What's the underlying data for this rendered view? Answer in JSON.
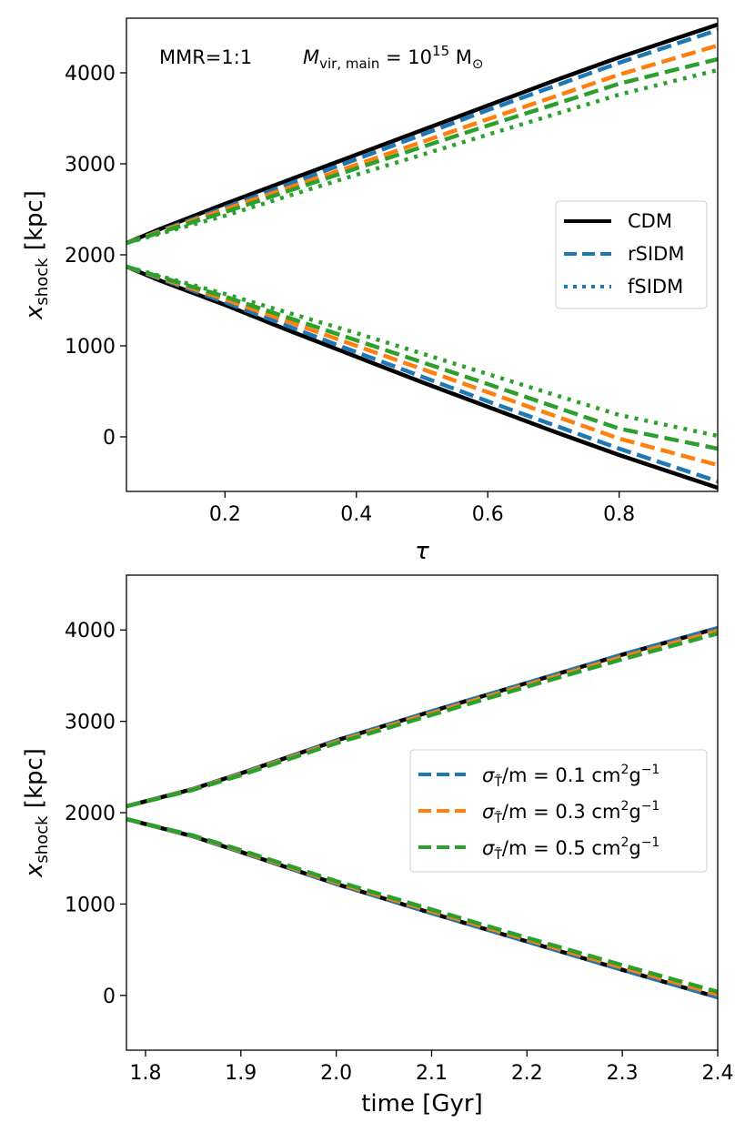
{
  "chart_data": [
    {
      "type": "line",
      "annotation": {
        "mmr": "MMR=1:1",
        "mass_symbol": "M",
        "mass_sub": "vir, main",
        "mass_eq": " = 10",
        "mass_exp": "15",
        "mass_unit": " M",
        "mass_unit_sub": "⊙"
      },
      "xlabel": "τ",
      "ylabel_main": "x",
      "ylabel_sub": "shock",
      "ylabel_unit": " [kpc]",
      "xlim": [
        0.05,
        0.95
      ],
      "ylim": [
        -600,
        4600
      ],
      "xticks": [
        0.2,
        0.4,
        0.6,
        0.8
      ],
      "xtick_labels": [
        "0.2",
        "0.4",
        "0.6",
        "0.8"
      ],
      "yticks": [
        0,
        1000,
        2000,
        3000,
        4000
      ],
      "ytick_labels": [
        "0",
        "1000",
        "2000",
        "3000",
        "4000"
      ],
      "legend": {
        "position": "right",
        "entries": [
          {
            "label": "CDM",
            "color": "#000000",
            "style": "solid"
          },
          {
            "label": "rSIDM",
            "color": "#1f77b4",
            "style": "dashed"
          },
          {
            "label": "fSIDM",
            "color": "#1f77b4",
            "style": "dotted"
          }
        ]
      },
      "series": [
        {
          "name": "CDM upper",
          "color": "#000000",
          "style": "solid",
          "x": [
            0.05,
            0.1,
            0.2,
            0.3,
            0.4,
            0.5,
            0.6,
            0.7,
            0.8,
            0.95
          ],
          "y": [
            2130,
            2280,
            2560,
            2830,
            3100,
            3370,
            3640,
            3910,
            4170,
            4530
          ]
        },
        {
          "name": "CDM lower",
          "color": "#000000",
          "style": "solid",
          "x": [
            0.05,
            0.1,
            0.2,
            0.3,
            0.4,
            0.5,
            0.6,
            0.7,
            0.8,
            0.95
          ],
          "y": [
            1870,
            1720,
            1450,
            1160,
            880,
            600,
            330,
            60,
            -200,
            -560
          ]
        },
        {
          "name": "rSIDM 0.1 upper",
          "color": "#1f77b4",
          "style": "dashed",
          "x": [
            0.05,
            0.2,
            0.4,
            0.6,
            0.8,
            0.95
          ],
          "y": [
            2130,
            2520,
            3050,
            3590,
            4110,
            4470
          ]
        },
        {
          "name": "rSIDM 0.1 lower",
          "color": "#1f77b4",
          "style": "dashed",
          "x": [
            0.05,
            0.2,
            0.4,
            0.6,
            0.8,
            0.95
          ],
          "y": [
            1870,
            1480,
            930,
            390,
            -130,
            -490
          ]
        },
        {
          "name": "rSIDM 0.3 upper",
          "color": "#ff7f0e",
          "style": "dashed",
          "x": [
            0.05,
            0.2,
            0.4,
            0.6,
            0.8,
            0.95
          ],
          "y": [
            2130,
            2500,
            2990,
            3490,
            3980,
            4300
          ]
        },
        {
          "name": "rSIDM 0.3 lower",
          "color": "#ff7f0e",
          "style": "dashed",
          "x": [
            0.05,
            0.2,
            0.4,
            0.6,
            0.8,
            0.95
          ],
          "y": [
            1870,
            1510,
            1000,
            490,
            -20,
            -310
          ]
        },
        {
          "name": "rSIDM 0.5 upper",
          "color": "#2ca02c",
          "style": "dashed",
          "x": [
            0.05,
            0.2,
            0.4,
            0.6,
            0.8,
            0.95
          ],
          "y": [
            2130,
            2470,
            2950,
            3420,
            3880,
            4150
          ]
        },
        {
          "name": "rSIDM 0.5 lower",
          "color": "#2ca02c",
          "style": "dashed",
          "x": [
            0.05,
            0.2,
            0.4,
            0.6,
            0.8,
            0.95
          ],
          "y": [
            1870,
            1540,
            1060,
            580,
            90,
            -130
          ]
        },
        {
          "name": "fSIDM 0.5 upper",
          "color": "#2ca02c",
          "style": "dotted",
          "x": [
            0.05,
            0.2,
            0.4,
            0.6,
            0.8,
            0.95
          ],
          "y": [
            2130,
            2430,
            2880,
            3320,
            3760,
            4030
          ]
        },
        {
          "name": "fSIDM 0.5 lower",
          "color": "#2ca02c",
          "style": "dotted",
          "x": [
            0.05,
            0.2,
            0.4,
            0.6,
            0.8,
            0.95
          ],
          "y": [
            1870,
            1570,
            1140,
            690,
            240,
            10
          ]
        }
      ]
    },
    {
      "type": "line",
      "xlabel": "time [Gyr]",
      "ylabel_main": "x",
      "ylabel_sub": "shock",
      "ylabel_unit": " [kpc]",
      "xlim": [
        1.78,
        2.4
      ],
      "ylim": [
        -600,
        4600
      ],
      "xticks": [
        1.8,
        1.9,
        2.0,
        2.1,
        2.2,
        2.3,
        2.4
      ],
      "xtick_labels": [
        "1.8",
        "1.9",
        "2.0",
        "2.1",
        "2.2",
        "2.3",
        "2.4"
      ],
      "yticks": [
        0,
        1000,
        2000,
        3000,
        4000
      ],
      "ytick_labels": [
        "0",
        "1000",
        "2000",
        "3000",
        "4000"
      ],
      "legend": {
        "position": "right",
        "entries": [
          {
            "label_prefix": "σ",
            "label_sub": "T̃",
            "label_mid": "/m = 0.1 cm",
            "label_sup": "2",
            "label_mid2": "g",
            "label_sup2": "−1",
            "color": "#1f77b4",
            "style": "dashed"
          },
          {
            "label_prefix": "σ",
            "label_sub": "T̃",
            "label_mid": "/m = 0.3 cm",
            "label_sup": "2",
            "label_mid2": "g",
            "label_sup2": "−1",
            "color": "#ff7f0e",
            "style": "dashed"
          },
          {
            "label_prefix": "σ",
            "label_sub": "T̃",
            "label_mid": "/m = 0.5 cm",
            "label_sup": "2",
            "label_mid2": "g",
            "label_sup2": "−1",
            "color": "#2ca02c",
            "style": "dashed"
          }
        ]
      },
      "series": [
        {
          "name": "CDM upper",
          "color": "#000000",
          "style": "solid",
          "x": [
            1.78,
            1.85,
            1.9,
            2.0,
            2.1,
            2.2,
            2.3,
            2.4
          ],
          "y": [
            2070,
            2260,
            2430,
            2790,
            3110,
            3420,
            3730,
            4020
          ]
        },
        {
          "name": "CDM lower",
          "color": "#000000",
          "style": "solid",
          "x": [
            1.78,
            1.85,
            1.9,
            2.0,
            2.1,
            2.2,
            2.3,
            2.4
          ],
          "y": [
            1930,
            1740,
            1570,
            1220,
            900,
            590,
            280,
            -20
          ]
        },
        {
          "name": "0.1 upper",
          "color": "#1f77b4",
          "style": "dashed",
          "x": [
            1.78,
            1.85,
            1.9,
            2.0,
            2.1,
            2.2,
            2.3,
            2.4
          ],
          "y": [
            2070,
            2260,
            2430,
            2790,
            3110,
            3420,
            3730,
            4020
          ]
        },
        {
          "name": "0.1 lower",
          "color": "#1f77b4",
          "style": "dashed",
          "x": [
            1.78,
            1.85,
            1.9,
            2.0,
            2.1,
            2.2,
            2.3,
            2.4
          ],
          "y": [
            1930,
            1740,
            1570,
            1220,
            900,
            590,
            280,
            -20
          ]
        },
        {
          "name": "0.3 upper",
          "color": "#ff7f0e",
          "style": "dashed",
          "x": [
            1.78,
            1.85,
            1.9,
            2.0,
            2.1,
            2.2,
            2.3,
            2.4
          ],
          "y": [
            2070,
            2255,
            2420,
            2775,
            3090,
            3400,
            3705,
            3990
          ]
        },
        {
          "name": "0.3 lower",
          "color": "#ff7f0e",
          "style": "dashed",
          "x": [
            1.78,
            1.85,
            1.9,
            2.0,
            2.1,
            2.2,
            2.3,
            2.4
          ],
          "y": [
            1930,
            1745,
            1580,
            1235,
            920,
            610,
            305,
            10
          ]
        },
        {
          "name": "0.5 upper",
          "color": "#2ca02c",
          "style": "dashed",
          "x": [
            1.78,
            1.85,
            1.9,
            2.0,
            2.1,
            2.2,
            2.3,
            2.4
          ],
          "y": [
            2070,
            2250,
            2410,
            2760,
            3070,
            3380,
            3680,
            3960
          ]
        },
        {
          "name": "0.5 lower",
          "color": "#2ca02c",
          "style": "dashed",
          "x": [
            1.78,
            1.85,
            1.9,
            2.0,
            2.1,
            2.2,
            2.3,
            2.4
          ],
          "y": [
            1930,
            1750,
            1590,
            1250,
            940,
            630,
            330,
            40
          ]
        }
      ]
    }
  ]
}
